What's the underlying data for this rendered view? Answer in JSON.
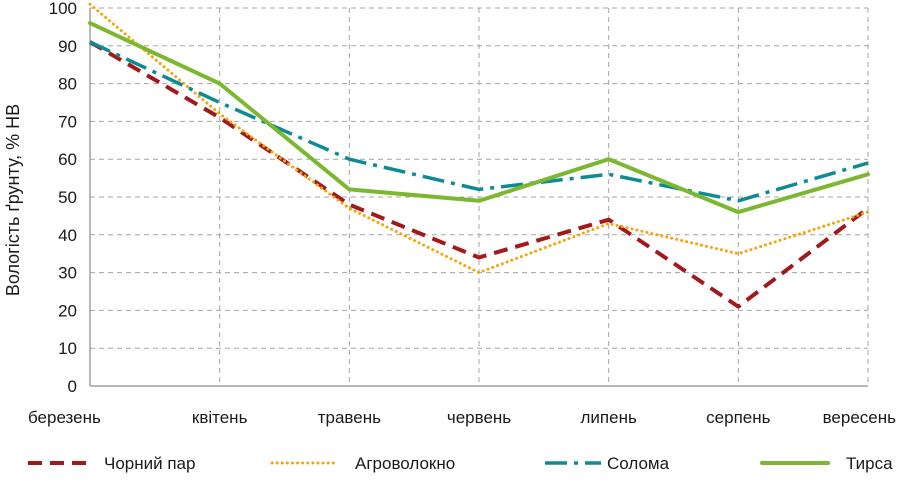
{
  "chart_data": {
    "type": "line",
    "ylabel": "Вологість ґрунту, % НВ",
    "xlabel": "",
    "categories": [
      "березень",
      "квітень",
      "травень",
      "червень",
      "липень",
      "серпень",
      "вересень"
    ],
    "yticks": [
      0,
      10,
      20,
      30,
      40,
      50,
      60,
      70,
      80,
      90,
      100
    ],
    "ylim": [
      0,
      100
    ],
    "grid": true,
    "legend_position": "bottom",
    "series": [
      {
        "name": "Чорний пар",
        "values": [
          91,
          71,
          48,
          34,
          44,
          21,
          47
        ],
        "color": "#a3191b",
        "style": "dashed"
      },
      {
        "name": "Агроволокно",
        "values": [
          101,
          72,
          47,
          30,
          43,
          35,
          46
        ],
        "color": "#f5a50c",
        "style": "dotted"
      },
      {
        "name": "Солома",
        "values": [
          91,
          75,
          60,
          52,
          56,
          49,
          59
        ],
        "color": "#0e8a94",
        "style": "dash-dot"
      },
      {
        "name": "Тирса",
        "values": [
          96,
          80,
          52,
          49,
          60,
          46,
          56
        ],
        "color": "#7cb82f",
        "style": "solid"
      }
    ]
  }
}
